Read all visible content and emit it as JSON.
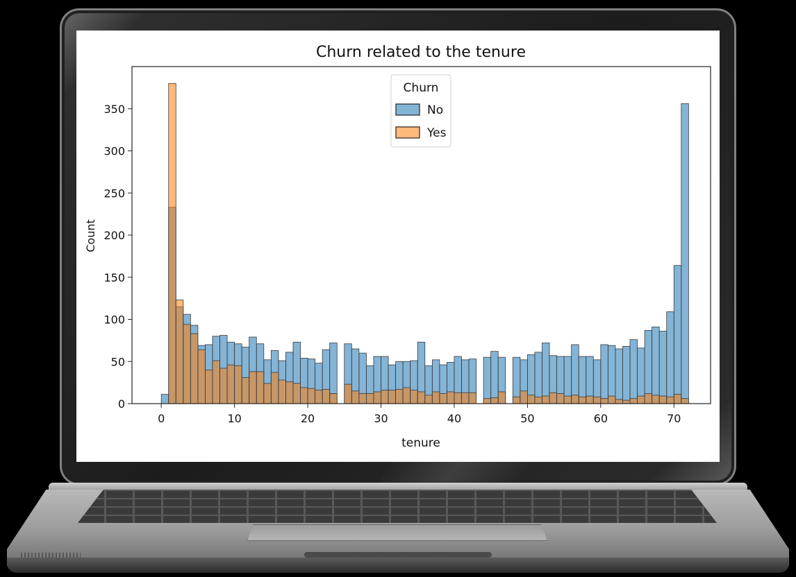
{
  "chart_data": {
    "type": "bar",
    "title": "Churn related to the tenure",
    "xlabel": "tenure",
    "ylabel": "Count",
    "xlim": [
      -4,
      75
    ],
    "ylim": [
      0,
      400
    ],
    "x_ticks": [
      0,
      10,
      20,
      30,
      40,
      50,
      60,
      70
    ],
    "y_ticks": [
      0,
      50,
      100,
      150,
      200,
      250,
      300,
      350
    ],
    "legend": {
      "title": "Churn",
      "position": "top-center",
      "entries": [
        {
          "label": "No",
          "color": "#1f77b4"
        },
        {
          "label": "Yes",
          "color": "#ff7f0e"
        }
      ]
    },
    "bin_width": 1,
    "series": [
      {
        "name": "No",
        "color": "#1f77b4",
        "x": [
          0,
          1,
          2,
          3,
          4,
          5,
          6,
          7,
          8,
          9,
          10,
          11,
          12,
          13,
          14,
          15,
          16,
          17,
          18,
          19,
          20,
          21,
          22,
          23,
          24,
          25,
          26,
          27,
          28,
          29,
          30,
          31,
          32,
          33,
          34,
          35,
          36,
          37,
          38,
          39,
          40,
          41,
          42,
          43,
          44,
          45,
          46,
          47,
          48,
          49,
          50,
          51,
          52,
          53,
          54,
          55,
          56,
          57,
          58,
          59,
          60,
          61,
          62,
          63,
          64,
          65,
          66,
          67,
          68,
          69,
          70,
          71
        ],
        "values": [
          11,
          233,
          115,
          106,
          93,
          69,
          70,
          80,
          81,
          73,
          71,
          67,
          79,
          71,
          52,
          63,
          51,
          61,
          73,
          54,
          53,
          48,
          64,
          72,
          0,
          71,
          65,
          60,
          45,
          56,
          56,
          46,
          50,
          50,
          51,
          73,
          45,
          52,
          46,
          49,
          56,
          52,
          53,
          0,
          55,
          62,
          55,
          0,
          55,
          52,
          58,
          61,
          72,
          57,
          56,
          56,
          70,
          56,
          56,
          52,
          70,
          69,
          65,
          68,
          76,
          66,
          87,
          91,
          86,
          109,
          164,
          356
        ]
      },
      {
        "name": "Yes",
        "color": "#ff7f0e",
        "x": [
          0,
          1,
          2,
          3,
          4,
          5,
          6,
          7,
          8,
          9,
          10,
          11,
          12,
          13,
          14,
          15,
          16,
          17,
          18,
          19,
          20,
          21,
          22,
          23,
          24,
          25,
          26,
          27,
          28,
          29,
          30,
          31,
          32,
          33,
          34,
          35,
          36,
          37,
          38,
          39,
          40,
          41,
          42,
          43,
          44,
          45,
          46,
          47,
          48,
          49,
          50,
          51,
          52,
          53,
          54,
          55,
          56,
          57,
          58,
          59,
          60,
          61,
          62,
          63,
          64,
          65,
          66,
          67,
          68,
          69,
          70,
          71
        ],
        "values": [
          0,
          380,
          123,
          94,
          83,
          64,
          40,
          51,
          42,
          46,
          45,
          31,
          38,
          38,
          24,
          37,
          28,
          26,
          24,
          19,
          18,
          16,
          17,
          12,
          0,
          23,
          15,
          12,
          12,
          14,
          16,
          16,
          17,
          19,
          16,
          14,
          10,
          14,
          12,
          14,
          13,
          13,
          13,
          0,
          6,
          7,
          14,
          0,
          8,
          15,
          10,
          8,
          9,
          13,
          12,
          9,
          10,
          8,
          9,
          8,
          6,
          9,
          5,
          4,
          6,
          9,
          12,
          10,
          9,
          8,
          11,
          6
        ]
      }
    ]
  }
}
